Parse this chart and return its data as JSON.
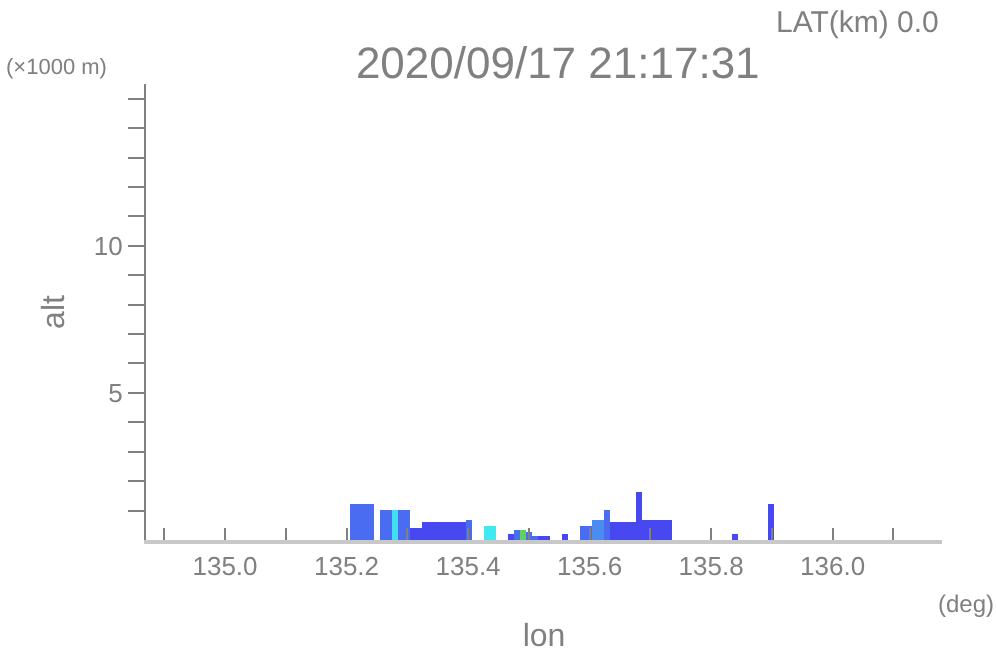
{
  "chart_data": {
    "type": "bar",
    "title": "2020/09/17 21:17:31",
    "subtitle": "LAT(km) 0.0",
    "xlabel": "lon",
    "ylabel": "alt",
    "annotations": [
      "(×1000 m)",
      "(deg)"
    ],
    "x": [
      135.21,
      135.22,
      135.23,
      135.24,
      135.26,
      135.27,
      135.28,
      135.29,
      135.3,
      135.31,
      135.32,
      135.33,
      135.34,
      135.35,
      135.36,
      135.37,
      135.38,
      135.39,
      135.4,
      135.43,
      135.44,
      135.47,
      135.48,
      135.49,
      135.5,
      135.51,
      135.52,
      135.53,
      135.56,
      135.59,
      135.6,
      135.61,
      135.62,
      135.63,
      135.64,
      135.65,
      135.66,
      135.67,
      135.68,
      135.69,
      135.7,
      135.71,
      135.72,
      135.73,
      135.84,
      135.9
    ],
    "values": [
      1.2,
      1.2,
      1.2,
      1.2,
      1.0,
      1.0,
      1.0,
      1.0,
      1.0,
      0.4,
      0.4,
      0.6,
      0.6,
      0.6,
      0.6,
      0.6,
      0.6,
      0.6,
      0.7,
      0.5,
      0.5,
      0.2,
      0.35,
      0.35,
      0.3,
      0.1,
      0.15,
      0.15,
      0.2,
      0.45,
      0.45,
      0.7,
      0.7,
      1.0,
      0.6,
      0.6,
      0.6,
      0.6,
      1.6,
      0.65,
      0.65,
      0.65,
      0.65,
      0.65,
      0.2,
      1.25
    ],
    "colors": [
      "#4a6cf0",
      "#4a6cf0",
      "#4a6cf0",
      "#4a6cf0",
      "#4a6cf0",
      "#4a6cf0",
      "#40e0f0",
      "#4a6cf0",
      "#4a6cf0",
      "#4848f0",
      "#4848f0",
      "#4848f0",
      "#4848f0",
      "#4848f0",
      "#4848f0",
      "#4848f0",
      "#4848f0",
      "#4848f0",
      "#4a6cf0",
      "#40e8f0",
      "#40e8f0",
      "#4848f0",
      "#4a6cf0",
      "#60d060",
      "#4a6cf0",
      "#4a6cf0",
      "#4848f0",
      "#4848f0",
      "#4848f0",
      "#4a6cf0",
      "#4a6cf0",
      "#4a8cf0",
      "#4a8cf0",
      "#4a6cf0",
      "#4848f0",
      "#4848f0",
      "#4848f0",
      "#4848f0",
      "#4848f0",
      "#4848f0",
      "#4848f0",
      "#4848f0",
      "#4848f0",
      "#4848f0",
      "#4848f0",
      "#4848f0"
    ],
    "xlim": [
      134.87,
      136.18
    ],
    "xticks": [
      {
        "value": 134.9,
        "label": null
      },
      {
        "value": 135.0,
        "label": "135.0"
      },
      {
        "value": 135.1,
        "label": null
      },
      {
        "value": 135.2,
        "label": "135.2"
      },
      {
        "value": 135.3,
        "label": null
      },
      {
        "value": 135.4,
        "label": "135.4"
      },
      {
        "value": 135.5,
        "label": null
      },
      {
        "value": 135.6,
        "label": "135.6"
      },
      {
        "value": 135.7,
        "label": null
      },
      {
        "value": 135.8,
        "label": "135.8"
      },
      {
        "value": 135.9,
        "label": null
      },
      {
        "value": 136.0,
        "label": "136.0"
      },
      {
        "value": 136.1,
        "label": null
      }
    ],
    "ylim": [
      0,
      15.5
    ],
    "yticks": [
      {
        "value": 1,
        "label": null
      },
      {
        "value": 2,
        "label": null
      },
      {
        "value": 3,
        "label": null
      },
      {
        "value": 4,
        "label": null
      },
      5,
      {
        "value": 6,
        "label": null
      },
      {
        "value": 7,
        "label": null
      },
      {
        "value": 8,
        "label": null
      },
      {
        "value": 9,
        "label": null
      },
      10,
      {
        "value": 11,
        "label": null
      },
      {
        "value": 12,
        "label": null
      },
      {
        "value": 13,
        "label": null
      },
      {
        "value": 14,
        "label": null
      },
      {
        "value": 15,
        "label": null
      }
    ],
    "tick_labels": true
  }
}
